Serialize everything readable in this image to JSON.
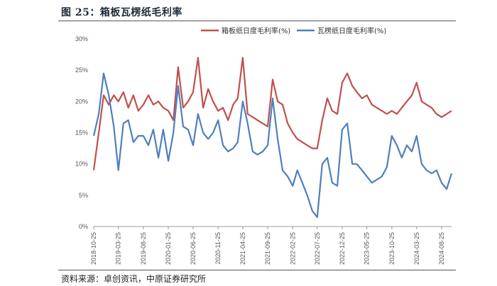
{
  "figure": {
    "title": "图 25：箱板瓦楞纸毛利率",
    "source": "资料来源：卓创资讯，中原证券研究所"
  },
  "colors": {
    "boxboard": "#c0504d",
    "corrugated": "#4f7fbf"
  },
  "chart_data": {
    "type": "line",
    "title": "",
    "xlabel": "",
    "ylabel": "",
    "ylim": [
      0,
      30
    ],
    "ytick_labels": [
      "0%",
      "5%",
      "10%",
      "15%",
      "20%",
      "25%",
      "30%"
    ],
    "xtick_labels": [
      "2018-10-25",
      "2019-03-25",
      "2019-08-25",
      "2020-01-25",
      "2020-06-25",
      "2020-11-25",
      "2021-04-25",
      "2021-09-25",
      "2022-02-25",
      "2022-07-25",
      "2022-12-25",
      "2023-05-25",
      "2023-10-25",
      "2024-03-25",
      "2024-08-25"
    ],
    "grid": false,
    "legend": "top",
    "series": [
      {
        "name": "箱板纸日度毛利率(%)",
        "x": [
          "2018-10-25",
          "2018-11-25",
          "2018-12-25",
          "2019-01-25",
          "2019-02-25",
          "2019-03-25",
          "2019-04-25",
          "2019-05-25",
          "2019-06-25",
          "2019-07-25",
          "2019-08-25",
          "2019-09-25",
          "2019-10-25",
          "2019-11-25",
          "2019-12-25",
          "2020-01-25",
          "2020-02-25",
          "2020-03-25",
          "2020-04-25",
          "2020-05-25",
          "2020-06-25",
          "2020-07-25",
          "2020-08-25",
          "2020-09-25",
          "2020-10-25",
          "2020-11-25",
          "2020-12-25",
          "2021-01-25",
          "2021-02-25",
          "2021-03-25",
          "2021-04-25",
          "2021-05-25",
          "2021-06-25",
          "2021-07-25",
          "2021-08-25",
          "2021-09-25",
          "2021-10-25",
          "2021-11-25",
          "2021-12-25",
          "2022-01-25",
          "2022-02-25",
          "2022-03-25",
          "2022-04-25",
          "2022-05-25",
          "2022-06-25",
          "2022-07-25",
          "2022-08-25",
          "2022-09-25",
          "2022-10-25",
          "2022-11-25",
          "2022-12-25",
          "2023-01-25",
          "2023-02-25",
          "2023-03-25",
          "2023-04-25",
          "2023-05-25",
          "2023-06-25",
          "2023-07-25",
          "2023-08-25",
          "2023-09-25",
          "2023-10-25",
          "2023-11-25",
          "2023-12-25",
          "2024-01-25",
          "2024-02-25",
          "2024-03-25",
          "2024-04-25",
          "2024-05-25",
          "2024-06-25",
          "2024-07-25",
          "2024-08-25",
          "2024-09-25",
          "2024-10-25"
        ],
        "values": [
          9.0,
          15.0,
          21.0,
          19.5,
          21.0,
          20.0,
          21.5,
          19.0,
          21.0,
          18.5,
          19.5,
          21.0,
          19.5,
          20.0,
          19.0,
          18.5,
          17.0,
          25.5,
          19.0,
          20.0,
          21.5,
          27.0,
          19.0,
          22.0,
          20.0,
          18.5,
          19.0,
          17.0,
          19.5,
          20.5,
          27.0,
          18.0,
          17.5,
          17.0,
          16.5,
          16.0,
          23.5,
          20.0,
          19.5,
          16.5,
          15.0,
          14.0,
          13.5,
          13.0,
          12.5,
          12.5,
          17.0,
          20.5,
          18.5,
          18.0,
          23.0,
          24.5,
          22.5,
          21.5,
          20.5,
          21.0,
          19.5,
          19.0,
          18.5,
          18.0,
          18.5,
          18.0,
          19.0,
          20.0,
          21.0,
          23.0,
          20.0,
          19.5,
          19.0,
          18.0,
          17.5,
          18.0,
          18.5
        ]
      },
      {
        "name": "瓦楞纸日度毛利率(%)",
        "x": [
          "2018-10-25",
          "2018-11-25",
          "2018-12-25",
          "2019-01-25",
          "2019-02-25",
          "2019-03-25",
          "2019-04-25",
          "2019-05-25",
          "2019-06-25",
          "2019-07-25",
          "2019-08-25",
          "2019-09-25",
          "2019-10-25",
          "2019-11-25",
          "2019-12-25",
          "2020-01-25",
          "2020-02-25",
          "2020-03-25",
          "2020-04-25",
          "2020-05-25",
          "2020-06-25",
          "2020-07-25",
          "2020-08-25",
          "2020-09-25",
          "2020-10-25",
          "2020-11-25",
          "2020-12-25",
          "2021-01-25",
          "2021-02-25",
          "2021-03-25",
          "2021-04-25",
          "2021-05-25",
          "2021-06-25",
          "2021-07-25",
          "2021-08-25",
          "2021-09-25",
          "2021-10-25",
          "2021-11-25",
          "2021-12-25",
          "2022-01-25",
          "2022-02-25",
          "2022-03-25",
          "2022-04-25",
          "2022-05-25",
          "2022-06-25",
          "2022-07-25",
          "2022-08-25",
          "2022-09-25",
          "2022-10-25",
          "2022-11-25",
          "2022-12-25",
          "2023-01-25",
          "2023-02-25",
          "2023-03-25",
          "2023-04-25",
          "2023-05-25",
          "2023-06-25",
          "2023-07-25",
          "2023-08-25",
          "2023-09-25",
          "2023-10-25",
          "2023-11-25",
          "2023-12-25",
          "2024-01-25",
          "2024-02-25",
          "2024-03-25",
          "2024-04-25",
          "2024-05-25",
          "2024-06-25",
          "2024-07-25",
          "2024-08-25",
          "2024-09-25",
          "2024-10-25"
        ],
        "values": [
          14.5,
          18.0,
          24.5,
          21.0,
          16.0,
          9.0,
          16.5,
          17.0,
          13.5,
          14.5,
          14.5,
          13.0,
          15.5,
          11.0,
          15.5,
          10.5,
          15.0,
          22.5,
          16.0,
          15.5,
          13.0,
          18.0,
          15.0,
          14.0,
          15.0,
          17.0,
          13.0,
          12.0,
          12.5,
          13.5,
          20.0,
          16.5,
          12.0,
          11.5,
          12.0,
          13.0,
          20.5,
          14.0,
          9.0,
          8.0,
          6.5,
          9.0,
          7.0,
          5.0,
          2.5,
          1.5,
          10.0,
          11.0,
          7.0,
          6.5,
          15.5,
          16.5,
          10.0,
          10.0,
          9.0,
          8.0,
          7.0,
          7.5,
          8.0,
          9.5,
          14.5,
          13.0,
          11.0,
          13.0,
          12.0,
          14.5,
          10.0,
          9.0,
          8.5,
          9.0,
          7.0,
          6.0,
          8.5
        ]
      }
    ]
  }
}
